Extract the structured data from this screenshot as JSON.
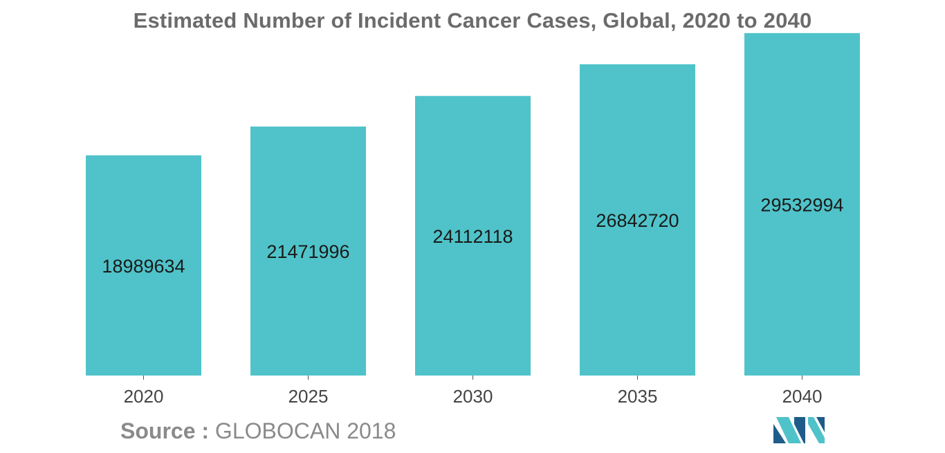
{
  "chart_data": {
    "type": "bar",
    "title": "Estimated Number of Incident Cancer Cases, Global, 2020 to 2040",
    "categories": [
      "2020",
      "2025",
      "2030",
      "2035",
      "2040"
    ],
    "values": [
      18989634,
      21471996,
      24112118,
      26842720,
      29532994
    ],
    "ylim": [
      0,
      30000000
    ],
    "grid": false,
    "legend": "none",
    "bar_color": "#4fc3c9",
    "data_labels": "inside-bar"
  },
  "source": {
    "label": "Source :",
    "text": "GLOBOCAN 2018"
  },
  "colors": {
    "title": "#6b6b6b",
    "axis": "#555555",
    "logo_dark": "#1f5c8a",
    "logo_light": "#4fc3c9"
  }
}
